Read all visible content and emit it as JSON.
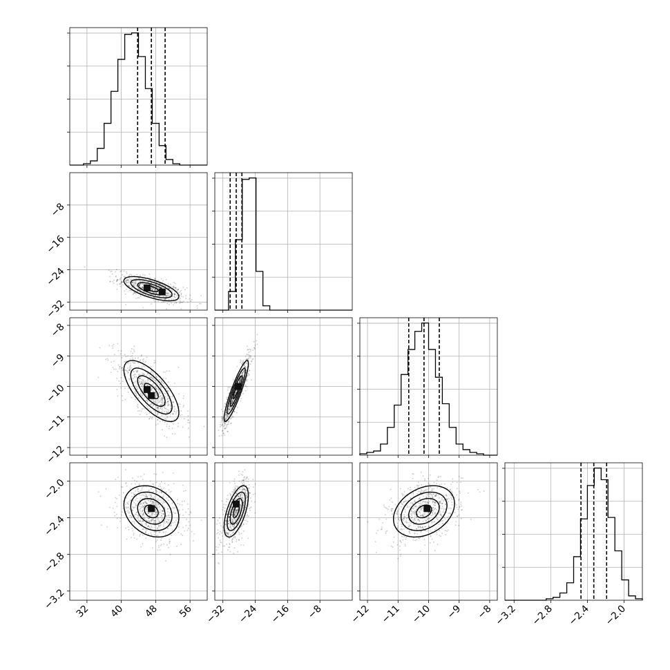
{
  "chart_data": {
    "type": "corner",
    "grid": true,
    "parameters": [
      {
        "range": [
          28,
          60
        ],
        "ticks": [
          32,
          40,
          48,
          56
        ],
        "tick_labels": [
          "32",
          "40",
          "48",
          "56"
        ],
        "quantiles": [
          43.8,
          47.0,
          50.2
        ],
        "hist": [
          0,
          0,
          1,
          3,
          12,
          30,
          53,
          76,
          94,
          95,
          78,
          55,
          30,
          14,
          4,
          1,
          0,
          0,
          0,
          0
        ]
      },
      {
        "range": [
          -34,
          0
        ],
        "ticks": [
          -32,
          -24,
          -16,
          -8
        ],
        "tick_labels": [
          "−32",
          "−24",
          "−16",
          "−8"
        ],
        "quantiles": [
          -30.2,
          -28.7,
          -27.3
        ],
        "hist": [
          0,
          0,
          13,
          49,
          91,
          92,
          27,
          3,
          0,
          0,
          0,
          0,
          0,
          0,
          0,
          0,
          0,
          0,
          0,
          0
        ]
      },
      {
        "range": [
          -12.25,
          -7.75
        ],
        "ticks": [
          -12,
          -11,
          -10,
          -9,
          -8
        ],
        "tick_labels": [
          "−12",
          "−11",
          "−10",
          "−9",
          "−8"
        ],
        "quantiles": [
          -10.65,
          -10.15,
          -9.65
        ],
        "hist": [
          1,
          2,
          3,
          8,
          20,
          36,
          58,
          76,
          89,
          95,
          76,
          56,
          37,
          20,
          8,
          4,
          2,
          1,
          0,
          0
        ]
      },
      {
        "range": [
          -3.3,
          -1.8
        ],
        "ticks": [
          -3.2,
          -2.8,
          -2.4,
          -2.0
        ],
        "tick_labels": [
          "−3.2",
          "−2.8",
          "−2.4",
          "−2.0"
        ],
        "quantiles": [
          -2.47,
          -2.33,
          -2.19
        ],
        "hist": [
          0,
          0,
          0,
          0,
          0,
          0,
          1,
          2,
          5,
          12,
          30,
          56,
          79,
          91,
          83,
          57,
          34,
          14,
          3,
          1
        ]
      }
    ],
    "pairs": [
      {
        "i": 1,
        "j": 0,
        "mean": [
          47.0,
          -28.7
        ],
        "sd": [
          3.2,
          1.5
        ],
        "rho": -0.65,
        "peaks": [
          [
            46.0,
            -28.5
          ],
          [
            49.5,
            -29.5
          ]
        ]
      },
      {
        "i": 2,
        "j": 0,
        "mean": [
          47.0,
          -10.15
        ],
        "sd": [
          3.2,
          0.5
        ],
        "rho": -0.7,
        "peaks": [
          [
            46.0,
            -10.1
          ],
          [
            47.0,
            -10.3
          ]
        ]
      },
      {
        "i": 2,
        "j": 1,
        "mean": [
          -28.7,
          -10.15
        ],
        "sd": [
          1.5,
          0.5
        ],
        "rho": 0.9,
        "peaks": [
          [
            -28.2,
            -10.0
          ]
        ]
      },
      {
        "i": 3,
        "j": 0,
        "mean": [
          47.0,
          -2.33
        ],
        "sd": [
          3.2,
          0.14
        ],
        "rho": -0.25,
        "peaks": [
          [
            47.0,
            -2.3
          ]
        ]
      },
      {
        "i": 3,
        "j": 1,
        "mean": [
          -28.7,
          -2.33
        ],
        "sd": [
          1.5,
          0.14
        ],
        "rho": 0.6,
        "peaks": [
          [
            -28.7,
            -2.25
          ]
        ]
      },
      {
        "i": 3,
        "j": 2,
        "mean": [
          -10.15,
          -2.33
        ],
        "sd": [
          0.5,
          0.14
        ],
        "rho": 0.3,
        "peaks": [
          [
            -10.05,
            -2.3
          ]
        ]
      }
    ]
  }
}
